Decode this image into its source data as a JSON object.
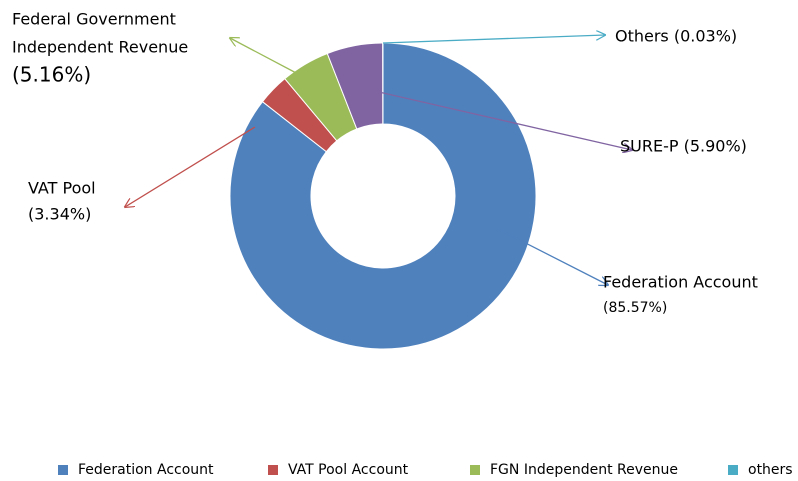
{
  "chart_data": {
    "type": "donut",
    "categories": [
      "Federation Account",
      "VAT Pool Account",
      "FGN Independent Revenue",
      null,
      "others"
    ],
    "values": [
      85.57,
      3.34,
      5.16,
      5.9,
      0.03
    ],
    "value_labels": [
      [
        "Federation Account",
        "(85.57%)"
      ],
      [
        "VAT Pool",
        "(3.34%)"
      ],
      [
        "Federal Government",
        "Independent Revenue",
        "(5.16%)"
      ],
      [
        "SURE-P (5.90%)"
      ],
      [
        "Others (0.03%)"
      ]
    ],
    "colors": [
      "#4f81bd",
      "#c0504d",
      "#9bbb59",
      "#8064a2",
      "#4bacc6"
    ],
    "legend": "bottom"
  }
}
